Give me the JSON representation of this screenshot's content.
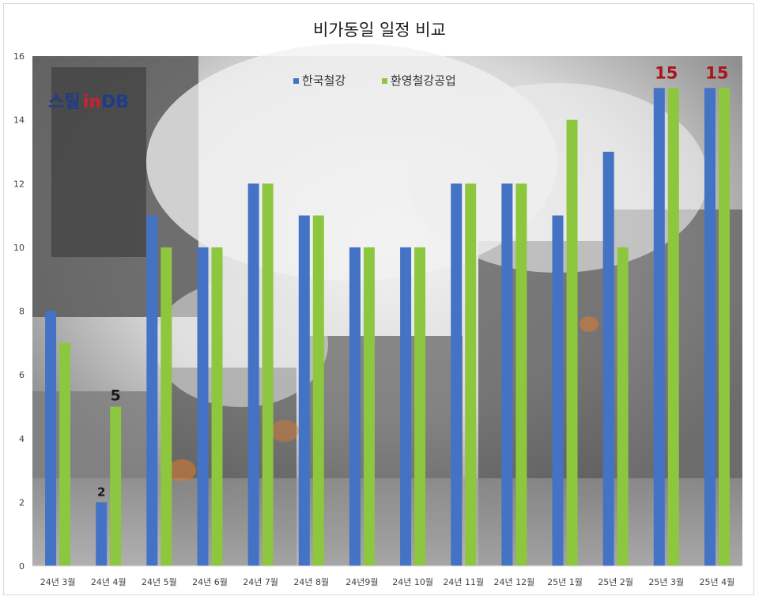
{
  "chart_data": {
    "type": "bar",
    "title": "비가동일 일정 비교",
    "categories": [
      "24년 3월",
      "24년 4월",
      "24년 5월",
      "24년 6월",
      "24년 7월",
      "24년 8월",
      "24년9월",
      "24년 10월",
      "24년 11월",
      "24년 12월",
      "25년 1월",
      "25년 2월",
      "25년 3월",
      "25년 4월"
    ],
    "series": [
      {
        "name": "한국철강",
        "color": "#4472c4",
        "values": [
          8,
          2,
          11,
          10,
          12,
          11,
          10,
          10,
          12,
          12,
          11,
          13,
          15,
          15
        ]
      },
      {
        "name": "환영철강공업",
        "color": "#8dc63f",
        "values": [
          7,
          5,
          10,
          10,
          12,
          11,
          10,
          10,
          12,
          12,
          14,
          10,
          15,
          15
        ]
      }
    ],
    "ylim": [
      0,
      16
    ],
    "yticks": [
      0,
      2,
      4,
      6,
      8,
      10,
      12,
      14,
      16
    ],
    "grid": false,
    "legend": "top-center",
    "annotations": [
      {
        "text": "2",
        "category_index": 1,
        "series_index": 0,
        "color": "#1a1a1a"
      },
      {
        "text": "5",
        "category_index": 1,
        "series_index": 1,
        "color": "#1a1a1a"
      },
      {
        "text": "15",
        "category_index": 12,
        "series_index": 0,
        "color": "#a6171c"
      },
      {
        "text": "15",
        "category_index": 13,
        "series_index": 0,
        "color": "#a6171c"
      }
    ]
  },
  "logo": {
    "text": "스틸inDB",
    "color_primary": "#1f3c88",
    "color_accent": "#d0202e"
  }
}
